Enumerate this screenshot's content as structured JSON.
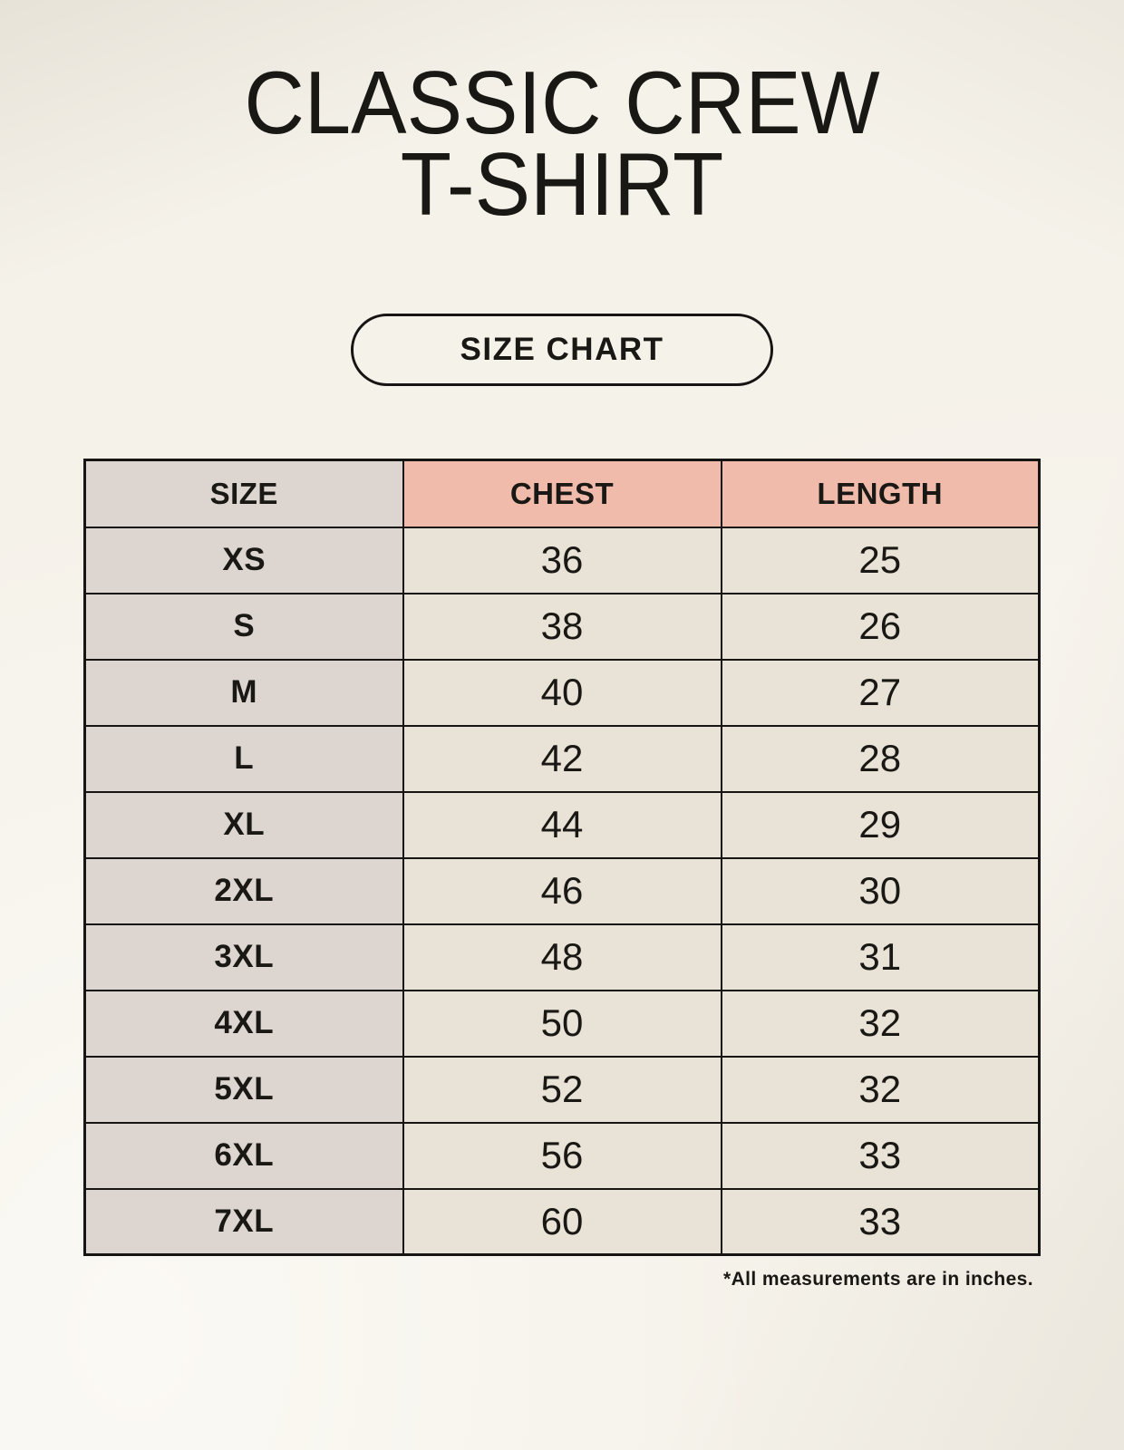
{
  "header": {
    "title_line1": "CLASSIC CREW",
    "title_line2": "T-SHIRT",
    "badge_label": "SIZE CHART"
  },
  "footnote": "*All measurements are in inches.",
  "chart_data": {
    "type": "table",
    "title": "CLASSIC CREW T-SHIRT SIZE CHART",
    "columns": [
      "SIZE",
      "CHEST",
      "LENGTH"
    ],
    "rows": [
      [
        "XS",
        "36",
        "25"
      ],
      [
        "S",
        "38",
        "26"
      ],
      [
        "M",
        "40",
        "27"
      ],
      [
        "L",
        "42",
        "28"
      ],
      [
        "XL",
        "44",
        "29"
      ],
      [
        "2XL",
        "46",
        "30"
      ],
      [
        "3XL",
        "48",
        "31"
      ],
      [
        "4XL",
        "50",
        "32"
      ],
      [
        "5XL",
        "52",
        "32"
      ],
      [
        "6XL",
        "56",
        "33"
      ],
      [
        "7XL",
        "60",
        "33"
      ]
    ]
  },
  "colors": {
    "background": "#f5f2ea",
    "size_column_bg": "#ddd6d0",
    "measure_header_bg": "#f0bbab",
    "value_cell_bg": "#e9e2d6",
    "border": "#171513",
    "text": "#1a1814"
  }
}
